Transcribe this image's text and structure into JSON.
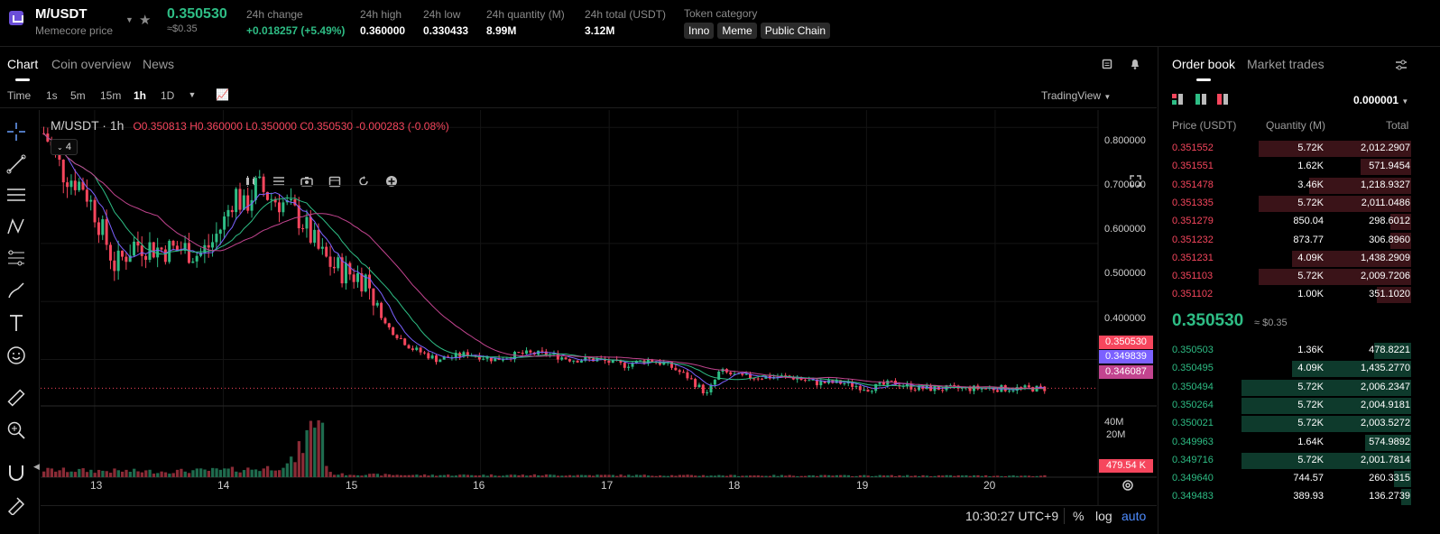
{
  "header": {
    "pair": "M/USDT",
    "subtitle": "Memecore price",
    "price": "0.350530",
    "price_usd": "≈$0.35",
    "stats": [
      {
        "label": "24h change",
        "value": "+0.018257 (+5.49%)"
      },
      {
        "label": "24h high",
        "value": "0.360000"
      },
      {
        "label": "24h low",
        "value": "0.330433"
      },
      {
        "label": "24h quantity (M)",
        "value": "8.99M"
      },
      {
        "label": "24h total (USDT)",
        "value": "3.12M"
      }
    ],
    "category_label": "Token category",
    "tags": [
      "Inno",
      "Meme",
      "Public Chain"
    ]
  },
  "chart_tabs": [
    "Chart",
    "Coin overview",
    "News"
  ],
  "timeframes": [
    "Time",
    "1s",
    "5m",
    "15m",
    "1h",
    "1D"
  ],
  "active_timeframe": "1h",
  "tradingview_label": "TradingView",
  "chart": {
    "legend": "M/USDT · 1h",
    "open": "O0.350813",
    "high": "H0.360000",
    "low": "L0.350000",
    "close": "C0.350530",
    "change": "-0.000283 (-0.08%)",
    "indicator_count": "4",
    "price_labels": [
      "0.350530",
      "0.349839",
      "0.346087"
    ],
    "volume_label": "479.54 K",
    "clock": "10:30:27 UTC+9",
    "pct_label": "%",
    "log_label": "log",
    "auto_label": "auto"
  },
  "chart_data": {
    "type": "candlestick",
    "price_axis_ticks": [
      "0.800000",
      "0.700000",
      "0.600000",
      "0.500000",
      "0.400000"
    ],
    "volume_axis_ticks": [
      "40M",
      "20M"
    ],
    "x_ticks": [
      "13",
      "14",
      "15",
      "16",
      "17",
      "18",
      "19",
      "20"
    ],
    "ylim": [
      0.32,
      0.83
    ],
    "x_tick_days": [
      13,
      14,
      15,
      16,
      17,
      18,
      19,
      20
    ],
    "xlim_days": [
      12.58,
      20.8
    ],
    "price_path_days": [
      12.6,
      12.75,
      12.9,
      13.0,
      13.15,
      13.3,
      13.5,
      13.7,
      13.8,
      13.9,
      14.0,
      14.08,
      14.15,
      14.25,
      14.35,
      14.45,
      14.6,
      14.75,
      14.85,
      14.95,
      15.1,
      15.25,
      15.45,
      15.65,
      15.9,
      16.1,
      16.3,
      16.5,
      16.7,
      16.9,
      17.1,
      17.3,
      17.45,
      17.6,
      17.75,
      17.85,
      18.0,
      18.2,
      18.4,
      18.6,
      18.8,
      19.0,
      19.2,
      19.4,
      19.6,
      19.8,
      20.0,
      20.2,
      20.4
    ],
    "price_path": [
      0.79,
      0.72,
      0.7,
      0.65,
      0.56,
      0.6,
      0.59,
      0.59,
      0.58,
      0.6,
      0.64,
      0.69,
      0.66,
      0.7,
      0.68,
      0.67,
      0.64,
      0.58,
      0.56,
      0.55,
      0.54,
      0.46,
      0.42,
      0.4,
      0.41,
      0.4,
      0.41,
      0.41,
      0.4,
      0.4,
      0.39,
      0.4,
      0.39,
      0.37,
      0.34,
      0.38,
      0.37,
      0.37,
      0.37,
      0.36,
      0.36,
      0.35,
      0.36,
      0.35,
      0.35,
      0.35,
      0.35,
      0.35,
      0.35
    ],
    "volume_path_days": [
      12.6,
      13.5,
      14.0,
      14.3,
      14.5,
      14.55,
      14.6,
      14.65,
      14.7,
      14.75,
      14.8,
      14.9,
      15.5,
      16.5,
      18.0,
      20.4
    ],
    "volume_path_millions": [
      5,
      4,
      5,
      6,
      9,
      14,
      22,
      30,
      40,
      46,
      3,
      2,
      1.5,
      1.5,
      1.2,
      1
    ]
  },
  "orderbook": {
    "tabs": [
      "Order book",
      "Market trades"
    ],
    "precision": "0.000001",
    "headers": [
      "Price (USDT)",
      "Quantity (M)",
      "Total"
    ],
    "asks": [
      {
        "price": "0.351552",
        "qty": "5.72K",
        "total": "2,012.2907",
        "fill": 0.9
      },
      {
        "price": "0.351551",
        "qty": "1.62K",
        "total": "571.9454",
        "fill": 0.3
      },
      {
        "price": "0.351478",
        "qty": "3.46K",
        "total": "1,218.9327",
        "fill": 0.6
      },
      {
        "price": "0.351335",
        "qty": "5.72K",
        "total": "2,011.0486",
        "fill": 0.9
      },
      {
        "price": "0.351279",
        "qty": "850.04",
        "total": "298.6012",
        "fill": 0.12
      },
      {
        "price": "0.351232",
        "qty": "873.77",
        "total": "306.8960",
        "fill": 0.12
      },
      {
        "price": "0.351231",
        "qty": "4.09K",
        "total": "1,438.2909",
        "fill": 0.7
      },
      {
        "price": "0.351103",
        "qty": "5.72K",
        "total": "2,009.7206",
        "fill": 0.9
      },
      {
        "price": "0.351102",
        "qty": "1.00K",
        "total": "351.1020",
        "fill": 0.2
      }
    ],
    "mid_price": "0.350530",
    "mid_usd": "≈ $0.35",
    "bids": [
      {
        "price": "0.350503",
        "qty": "1.36K",
        "total": "478.8221",
        "fill": 0.22
      },
      {
        "price": "0.350495",
        "qty": "4.09K",
        "total": "1,435.2770",
        "fill": 0.7
      },
      {
        "price": "0.350494",
        "qty": "5.72K",
        "total": "2,006.2347",
        "fill": 1.0
      },
      {
        "price": "0.350264",
        "qty": "5.72K",
        "total": "2,004.9181",
        "fill": 1.0
      },
      {
        "price": "0.350021",
        "qty": "5.72K",
        "total": "2,003.5272",
        "fill": 1.0
      },
      {
        "price": "0.349963",
        "qty": "1.64K",
        "total": "574.9892",
        "fill": 0.27
      },
      {
        "price": "0.349716",
        "qty": "5.72K",
        "total": "2,001.7814",
        "fill": 1.0
      },
      {
        "price": "0.349640",
        "qty": "744.57",
        "total": "260.3315",
        "fill": 0.1
      },
      {
        "price": "0.349483",
        "qty": "389.93",
        "total": "136.2739",
        "fill": 0.06
      }
    ]
  },
  "colors": {
    "up": "#2ebd85",
    "down": "#f6465d",
    "ma1": "#7b61ff",
    "ma2": "#2ebd85",
    "ma3": "#c2448f"
  }
}
